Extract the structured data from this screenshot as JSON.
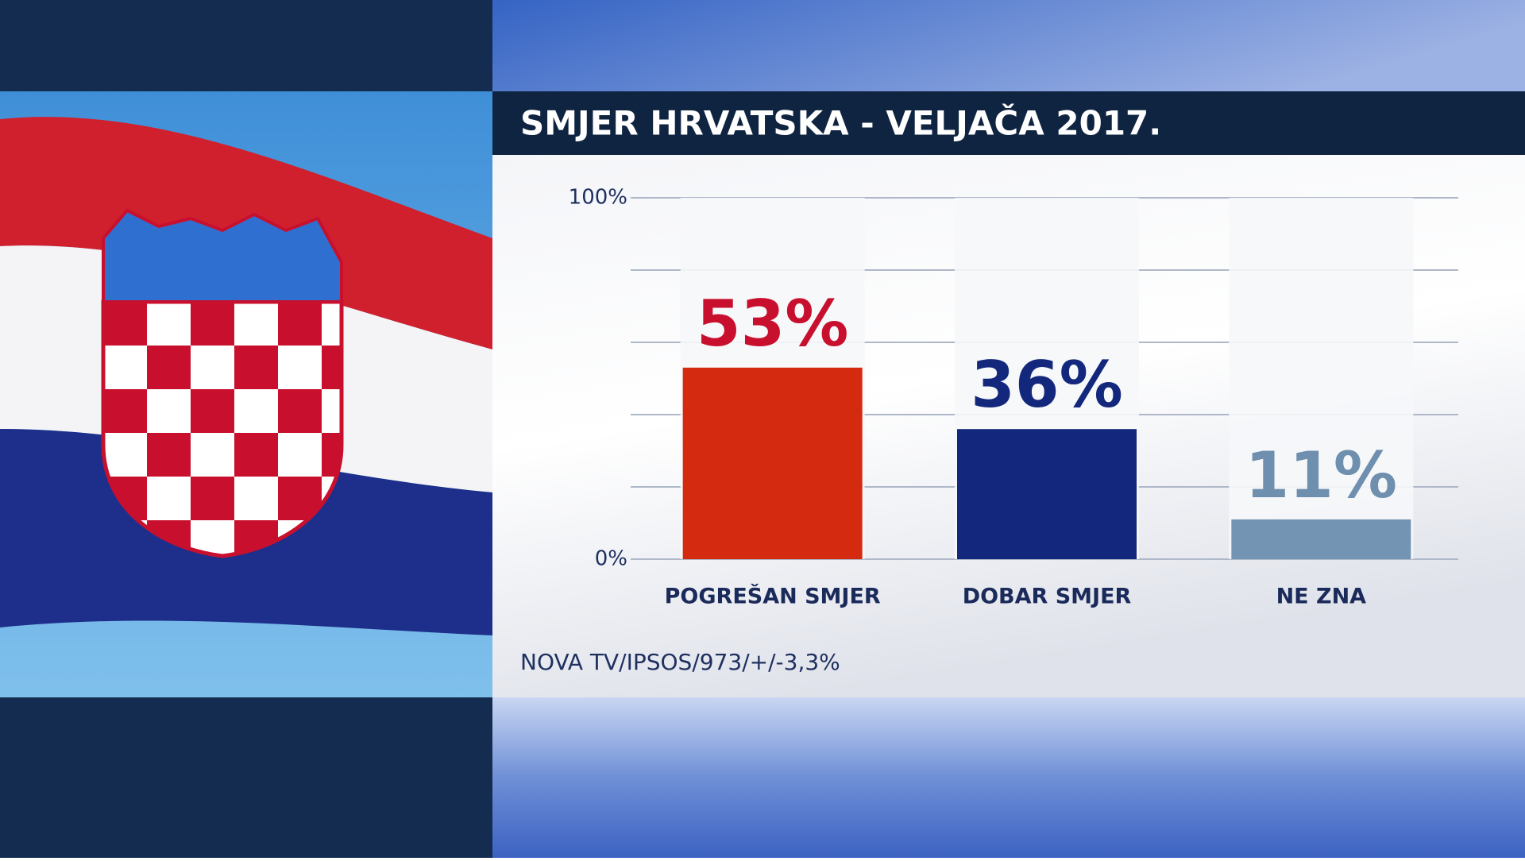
{
  "chart_data": {
    "type": "bar",
    "title": "SMJER HRVATSKA - VELJAČA 2017.",
    "categories": [
      "POGREŠAN SMJER",
      "DOBAR SMJER",
      "NE ZNA"
    ],
    "values": [
      53,
      36,
      11
    ],
    "value_labels": [
      "53%",
      "36%",
      "11%"
    ],
    "colors": [
      "#d42a10",
      "#13287c",
      "#7395b3"
    ],
    "label_colors": [
      "#c8102e",
      "#13287c",
      "#6f8fae"
    ],
    "ylim": [
      0,
      100
    ],
    "yticks": [
      {
        "value": 0,
        "label": "0%"
      },
      {
        "value": 20,
        "label": null
      },
      {
        "value": 40,
        "label": null
      },
      {
        "value": 60,
        "label": null
      },
      {
        "value": 80,
        "label": null
      },
      {
        "value": 100,
        "label": "100%"
      }
    ],
    "grid": true,
    "source": "NOVA TV/IPSOS/973/+/-3,3%"
  }
}
